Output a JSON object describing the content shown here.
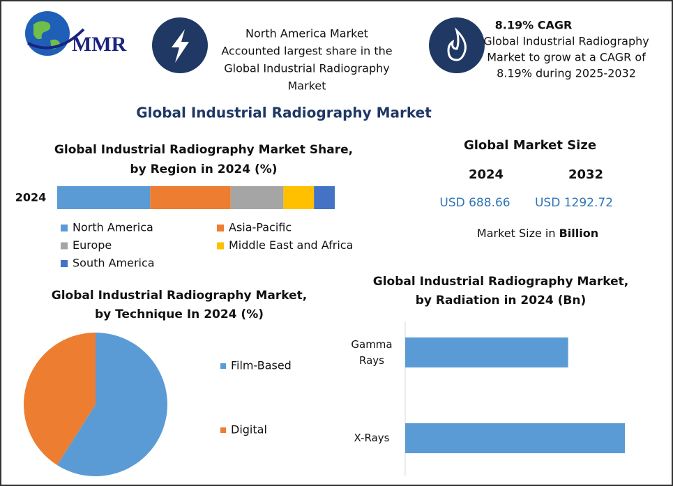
{
  "header": {
    "logo": "MMR",
    "note_lines": [
      "North America Market",
      "Accounted largest share in the",
      "Global Industrial  Radiography",
      "Market"
    ],
    "cagr_title": "8.19% CAGR",
    "cagr_lines": [
      "Global Industrial Radiography",
      "Market to grow at a CAGR of",
      "8.19% during 2025-2032"
    ],
    "title": "Global Industrial Radiography Market"
  },
  "market_size": {
    "title": "Global Market Size",
    "years": [
      "2024",
      "2032"
    ],
    "amounts": [
      "USD 688.66",
      "USD 1292.72"
    ],
    "note": "Market Size in ",
    "note_unit": "Billion"
  },
  "chart_data": [
    {
      "type": "stacked_bar",
      "title_lines": [
        "Global Industrial Radiography Market Share,",
        "by Region in 2024 (%)"
      ],
      "categories": [
        "2024"
      ],
      "series": [
        {
          "name": "North America",
          "color": "#5b9bd5",
          "values": [
            33.5
          ]
        },
        {
          "name": "Asia-Pacific",
          "color": "#ed7d31",
          "values": [
            29
          ]
        },
        {
          "name": "Europe",
          "color": "#a5a5a5",
          "values": [
            19
          ]
        },
        {
          "name": "Middle East and Africa",
          "color": "#ffc000",
          "values": [
            11
          ]
        },
        {
          "name": "South America",
          "color": "#4472c4",
          "values": [
            7.5
          ]
        }
      ]
    },
    {
      "type": "pie",
      "title_lines": [
        "Global Industrial Radiography Market,",
        "by Technique In 2024 (%)"
      ],
      "categories": [
        "Film-Based",
        "Digital"
      ],
      "values": [
        59,
        41
      ],
      "colors": [
        "#5b9bd5",
        "#ed7d31"
      ]
    },
    {
      "type": "hbar",
      "title_lines": [
        "Global Industrial Radiography Market,",
        "by Radiation  in 2024 (Bn)"
      ],
      "categories": [
        "Gamma Rays",
        "X-Rays"
      ],
      "values": [
        293,
        395
      ],
      "color": "#5b9bd5"
    }
  ]
}
